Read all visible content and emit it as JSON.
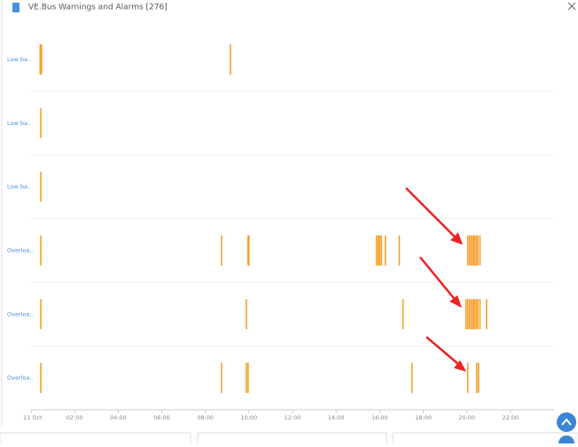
{
  "chart_data": {
    "type": "event-timeline",
    "title": "VE.Bus Warnings and Alarms [276]",
    "xlim": [
      0,
      24
    ],
    "xticks": [
      {
        "value": 0,
        "label": "11 Oct"
      },
      {
        "value": 2,
        "label": "02:00"
      },
      {
        "value": 4,
        "label": "04:00"
      },
      {
        "value": 6,
        "label": "06:00"
      },
      {
        "value": 8,
        "label": "08:00"
      },
      {
        "value": 10,
        "label": "10:00"
      },
      {
        "value": 12,
        "label": "12:00"
      },
      {
        "value": 14,
        "label": "14:00"
      },
      {
        "value": 16,
        "label": "16:00"
      },
      {
        "value": 18,
        "label": "18:00"
      },
      {
        "value": 20,
        "label": "20:00"
      },
      {
        "value": 22,
        "label": "22:00"
      }
    ],
    "series": [
      {
        "name": "Low ba..",
        "color": "#f5a02a",
        "x": [
          0.42,
          0.48,
          9.15
        ]
      },
      {
        "name": "Low ba..",
        "color": "#f5a02a",
        "x": [
          0.45
        ]
      },
      {
        "name": "Low ba..",
        "color": "#f5a02a",
        "x": [
          0.45
        ]
      },
      {
        "name": "Overloa..",
        "color": "#f5a02a",
        "x": [
          0.45,
          8.74,
          9.96,
          10.0,
          15.85,
          15.93,
          16.0,
          16.08,
          16.26,
          16.9,
          20.04,
          20.12,
          20.2,
          20.28,
          20.35,
          20.43,
          20.5,
          20.6
        ]
      },
      {
        "name": "Overloa..",
        "color": "#f5a02a",
        "x": [
          0.45,
          9.88,
          17.07,
          19.96,
          20.04,
          20.12,
          20.2,
          20.28,
          20.35,
          20.43,
          20.5,
          20.6,
          20.9
        ]
      },
      {
        "name": "Overloa..",
        "color": "#f5a02a",
        "x": [
          0.45,
          8.74,
          9.88,
          9.96,
          17.48,
          20.04,
          20.45,
          20.53
        ]
      }
    ]
  }
}
